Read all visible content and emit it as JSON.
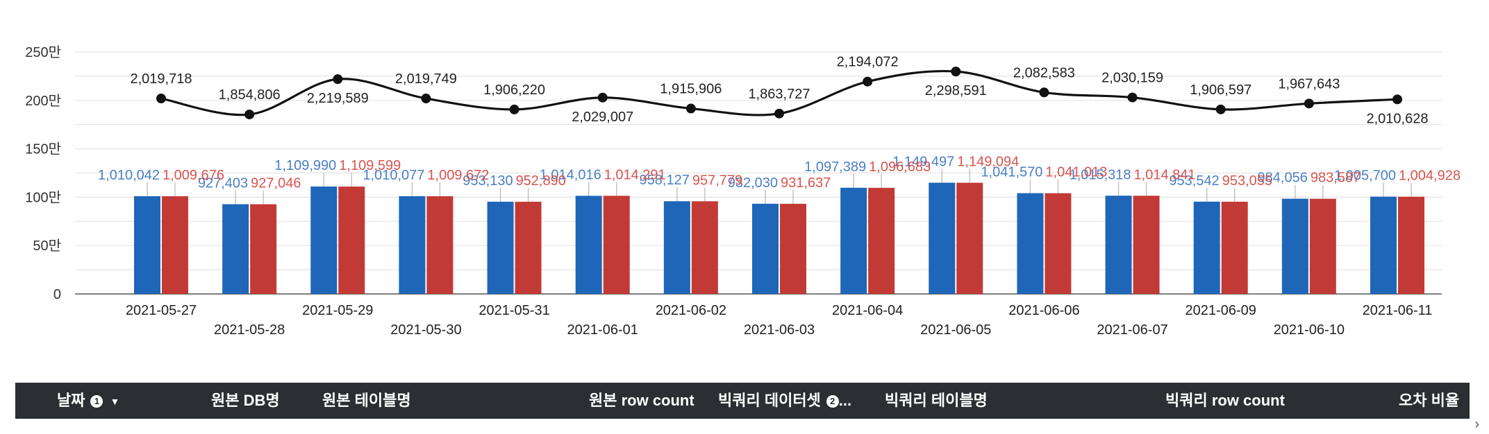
{
  "chart_data": {
    "type": "bar",
    "categories": [
      "2021-05-27",
      "2021-05-28",
      "2021-05-29",
      "2021-05-30",
      "2021-05-31",
      "2021-06-01",
      "2021-06-02",
      "2021-06-03",
      "2021-06-04",
      "2021-06-05",
      "2021-06-06",
      "2021-06-07",
      "2021-06-09",
      "2021-06-10",
      "2021-06-11"
    ],
    "y_ticks": [
      "0",
      "50만",
      "100만",
      "150만",
      "200만",
      "250만"
    ],
    "ylim": [
      0,
      2500000
    ],
    "grid": true,
    "series": [
      {
        "kind": "bar",
        "color": "#1f66b8",
        "label_color": "#4a7fc4",
        "values": [
          1010042,
          927403,
          1109990,
          1010077,
          953130,
          1014016,
          958127,
          932030,
          1097389,
          1149497,
          1041570,
          1015318,
          953542,
          984056,
          1005700
        ],
        "labels": [
          "1,010,042",
          "927,403",
          "1,109,990",
          "1,010,077",
          "953,130",
          "1,014,016",
          "958,127",
          "932,030",
          "1,097,389",
          "1,149,497",
          "1,041,570",
          "1,015,318",
          "953,542",
          "984,056",
          "1,005,700"
        ]
      },
      {
        "kind": "bar",
        "color": "#c23a36",
        "label_color": "#d9534f",
        "values": [
          1009676,
          927046,
          1109599,
          1009672,
          952890,
          1014291,
          957779,
          931637,
          1096683,
          1149094,
          1041013,
          1014841,
          953055,
          983587,
          1004928
        ],
        "labels": [
          "1,009,676",
          "927,046",
          "1,109,599",
          "1,009,672",
          "952,890",
          "1,014,291",
          "957,779",
          "931,637",
          "1,096,683",
          "1,149,094",
          "1,041,013",
          "1,014,841",
          "953,055",
          "983,587",
          "1,004,928"
        ]
      },
      {
        "kind": "line",
        "color": "#111111",
        "values": [
          2019718,
          1854806,
          2219589,
          2019749,
          1906220,
          2029007,
          1915906,
          1863727,
          2194072,
          2298591,
          2082583,
          2030159,
          1906597,
          1967643,
          2010628
        ],
        "labels": [
          "2,019,718",
          "1,854,806",
          "2,219,589",
          "2,019,749",
          "1,906,220",
          "2,029,007",
          "1,915,906",
          "1,863,727",
          "2,194,072",
          "2,298,591",
          "2,082,583",
          "2,030,159",
          "1,906,597",
          "1,967,643",
          "2,010,628"
        ]
      }
    ]
  },
  "table": {
    "columns": [
      {
        "label": "날짜",
        "badge": "1",
        "sort": "▼"
      },
      {
        "label": "원본 DB명"
      },
      {
        "label": "원본 테이블명"
      },
      {
        "label": "원본 row count"
      },
      {
        "label": "빅쿼리 데이터셋",
        "badge": "2",
        "suffix": "..."
      },
      {
        "label": "빅쿼리 테이블명"
      },
      {
        "label": "빅쿼리 row count"
      },
      {
        "label": "오차 비율"
      }
    ]
  },
  "icons": {
    "bottom": "chevron-right-icon"
  }
}
